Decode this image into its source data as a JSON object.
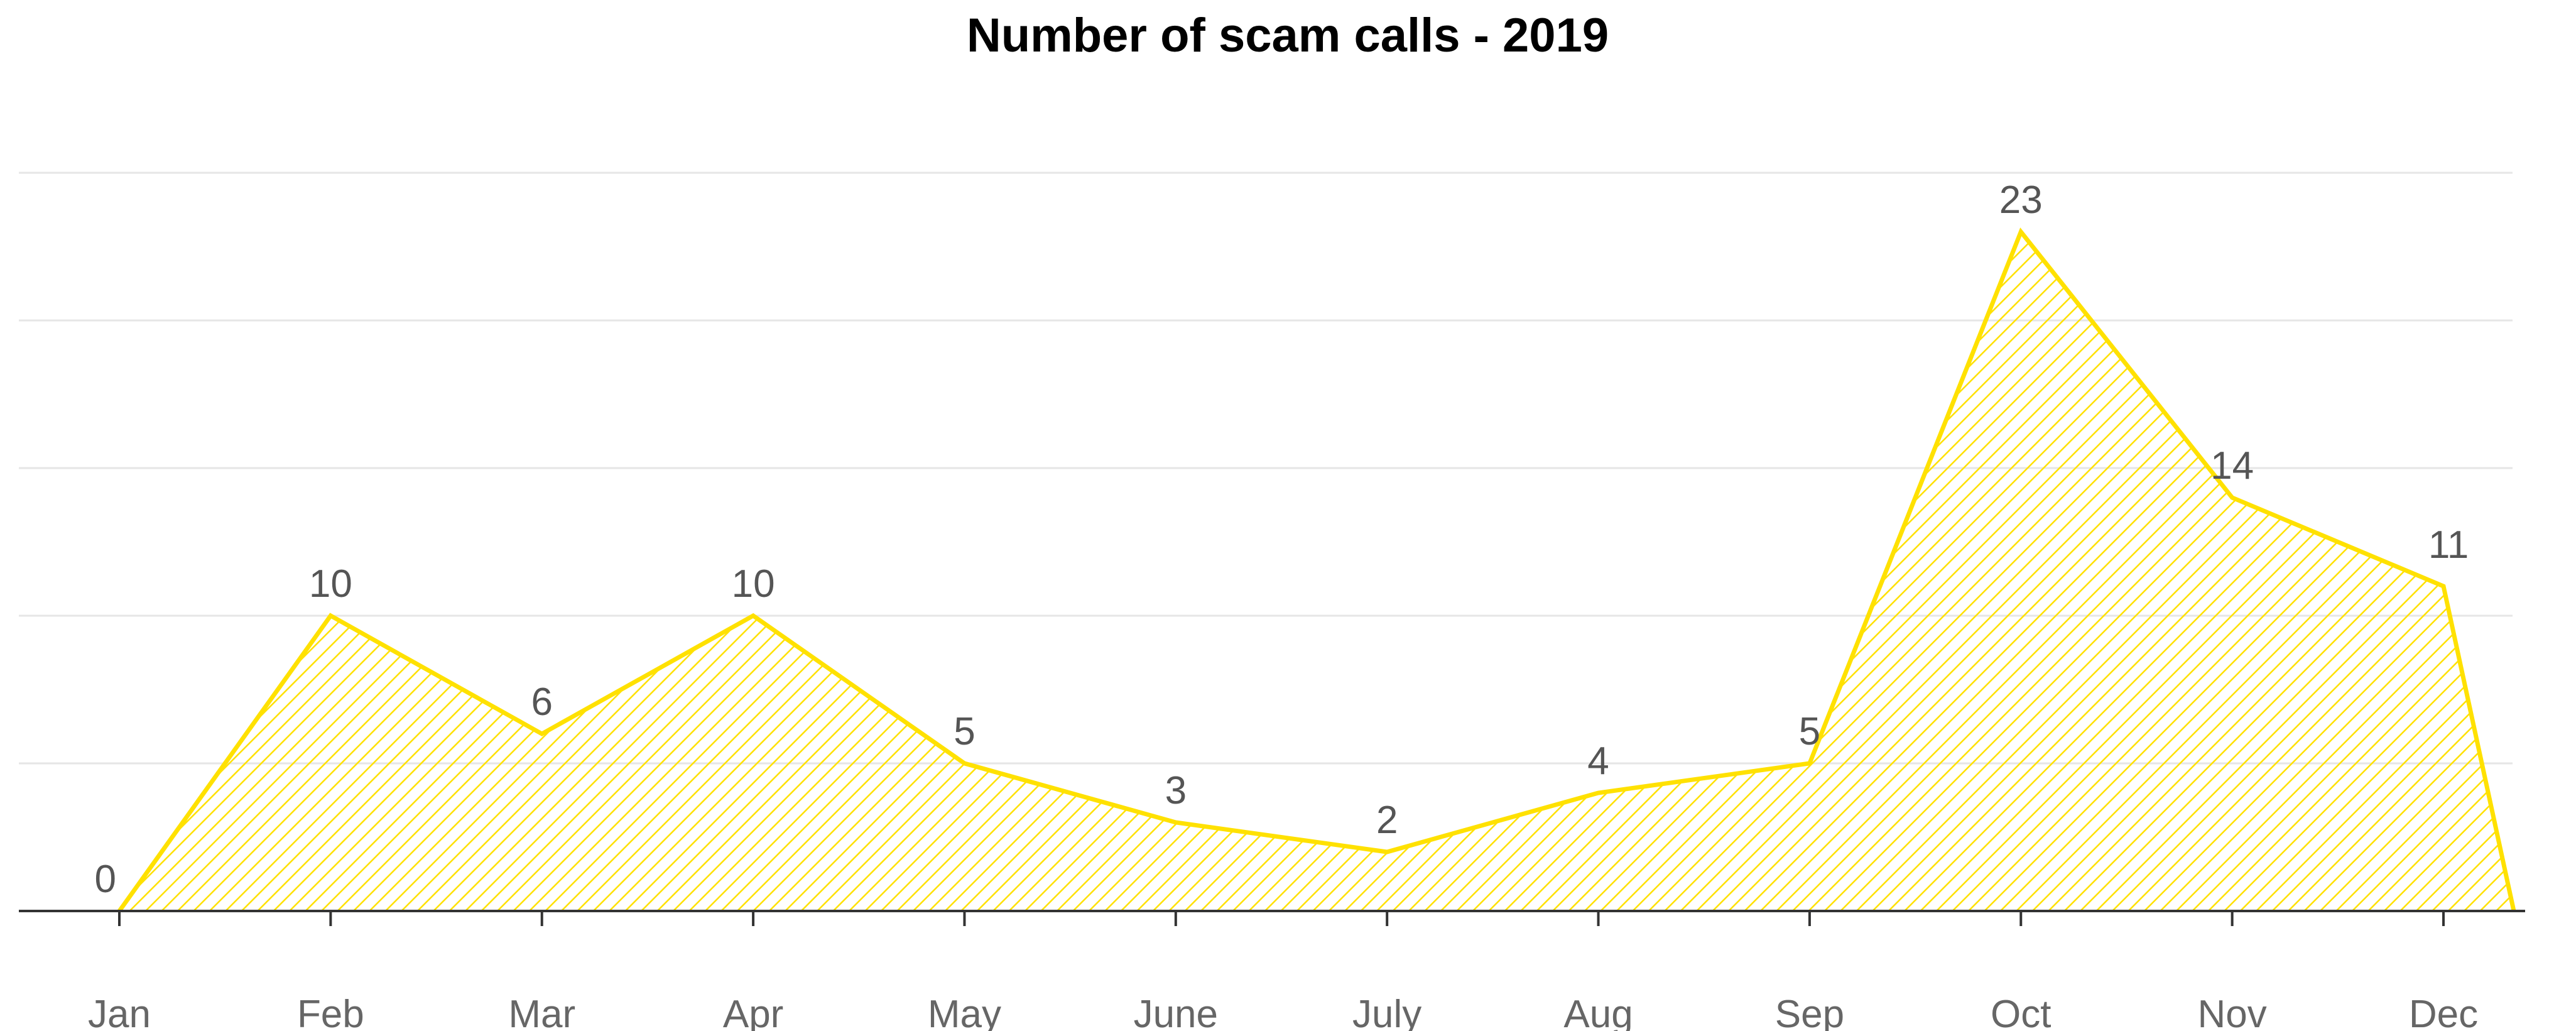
{
  "chart_data": {
    "type": "area",
    "title": "Number of scam calls - 2019",
    "xlabel": "",
    "ylabel": "",
    "categories": [
      "Jan",
      "Feb",
      "Mar",
      "Apr",
      "May",
      "June",
      "July",
      "Aug",
      "Sep",
      "Oct",
      "Nov",
      "Dec"
    ],
    "values": [
      0,
      10,
      6,
      10,
      5,
      3,
      2,
      4,
      5,
      23,
      14,
      11
    ],
    "ylim": [
      0,
      25
    ],
    "grid": true,
    "y_tick_labels_shown": false,
    "data_labels_shown": true,
    "fill_pattern": "diagonal-hatch",
    "colors": {
      "series": "#FFE100",
      "hatch": "#FFE100",
      "gridline": "#E6E6E6",
      "axis": "#333333",
      "title": "#000000",
      "tick_label": "#666666",
      "data_label": "#555555"
    }
  }
}
